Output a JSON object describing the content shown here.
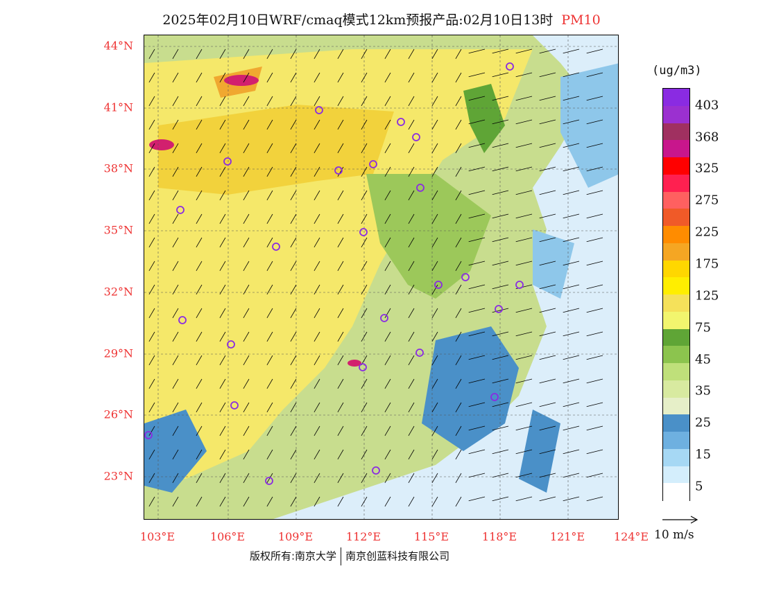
{
  "title": {
    "main": "2025年02月10日WRF/cmaq模式12km预报产品:02月10日13时",
    "species": "PM10"
  },
  "map": {
    "lat_ticks": [
      "44°N",
      "41°N",
      "38°N",
      "35°N",
      "32°N",
      "29°N",
      "26°N",
      "23°N"
    ],
    "lon_ticks": [
      "103°E",
      "106°E",
      "109°E",
      "112°E",
      "115°E",
      "118°E",
      "121°E",
      "124°E"
    ],
    "fill_colors": {
      "sea": "#dceefa",
      "low": "#8ec7ea",
      "clean": "#4a90c8",
      "light_green": "#c8dd8e",
      "green": "#9cc85a",
      "dark_green": "#5fa536",
      "yellow": "#f5e86a",
      "gold": "#f2d23c",
      "orange": "#f0a830",
      "hot": "#d2206e"
    }
  },
  "legend": {
    "unit": "(ug/m3)",
    "colors": [
      "#8a2be2",
      "#9b30d0",
      "#a03060",
      "#c8168c",
      "#ff0000",
      "#ff2050",
      "#ff6060",
      "#f05a28",
      "#ff8c00",
      "#f5a623",
      "#ffd700",
      "#ffee00",
      "#f5e15a",
      "#f2f56e",
      "#5fa536",
      "#8cc44e",
      "#bfe07a",
      "#d8eaa0",
      "#e6efc8",
      "#4a90c8",
      "#6eb0e0",
      "#a6d8f4",
      "#d4eefc",
      "#ffffff"
    ],
    "labels": [
      "403",
      "368",
      "325",
      "275",
      "225",
      "175",
      "125",
      "75",
      "45",
      "35",
      "25",
      "15",
      "5"
    ]
  },
  "wind_reference": {
    "label": "10 m/s"
  },
  "footer": {
    "left": "版权所有:南京大学",
    "right": "南京创蓝科技有限公司"
  }
}
